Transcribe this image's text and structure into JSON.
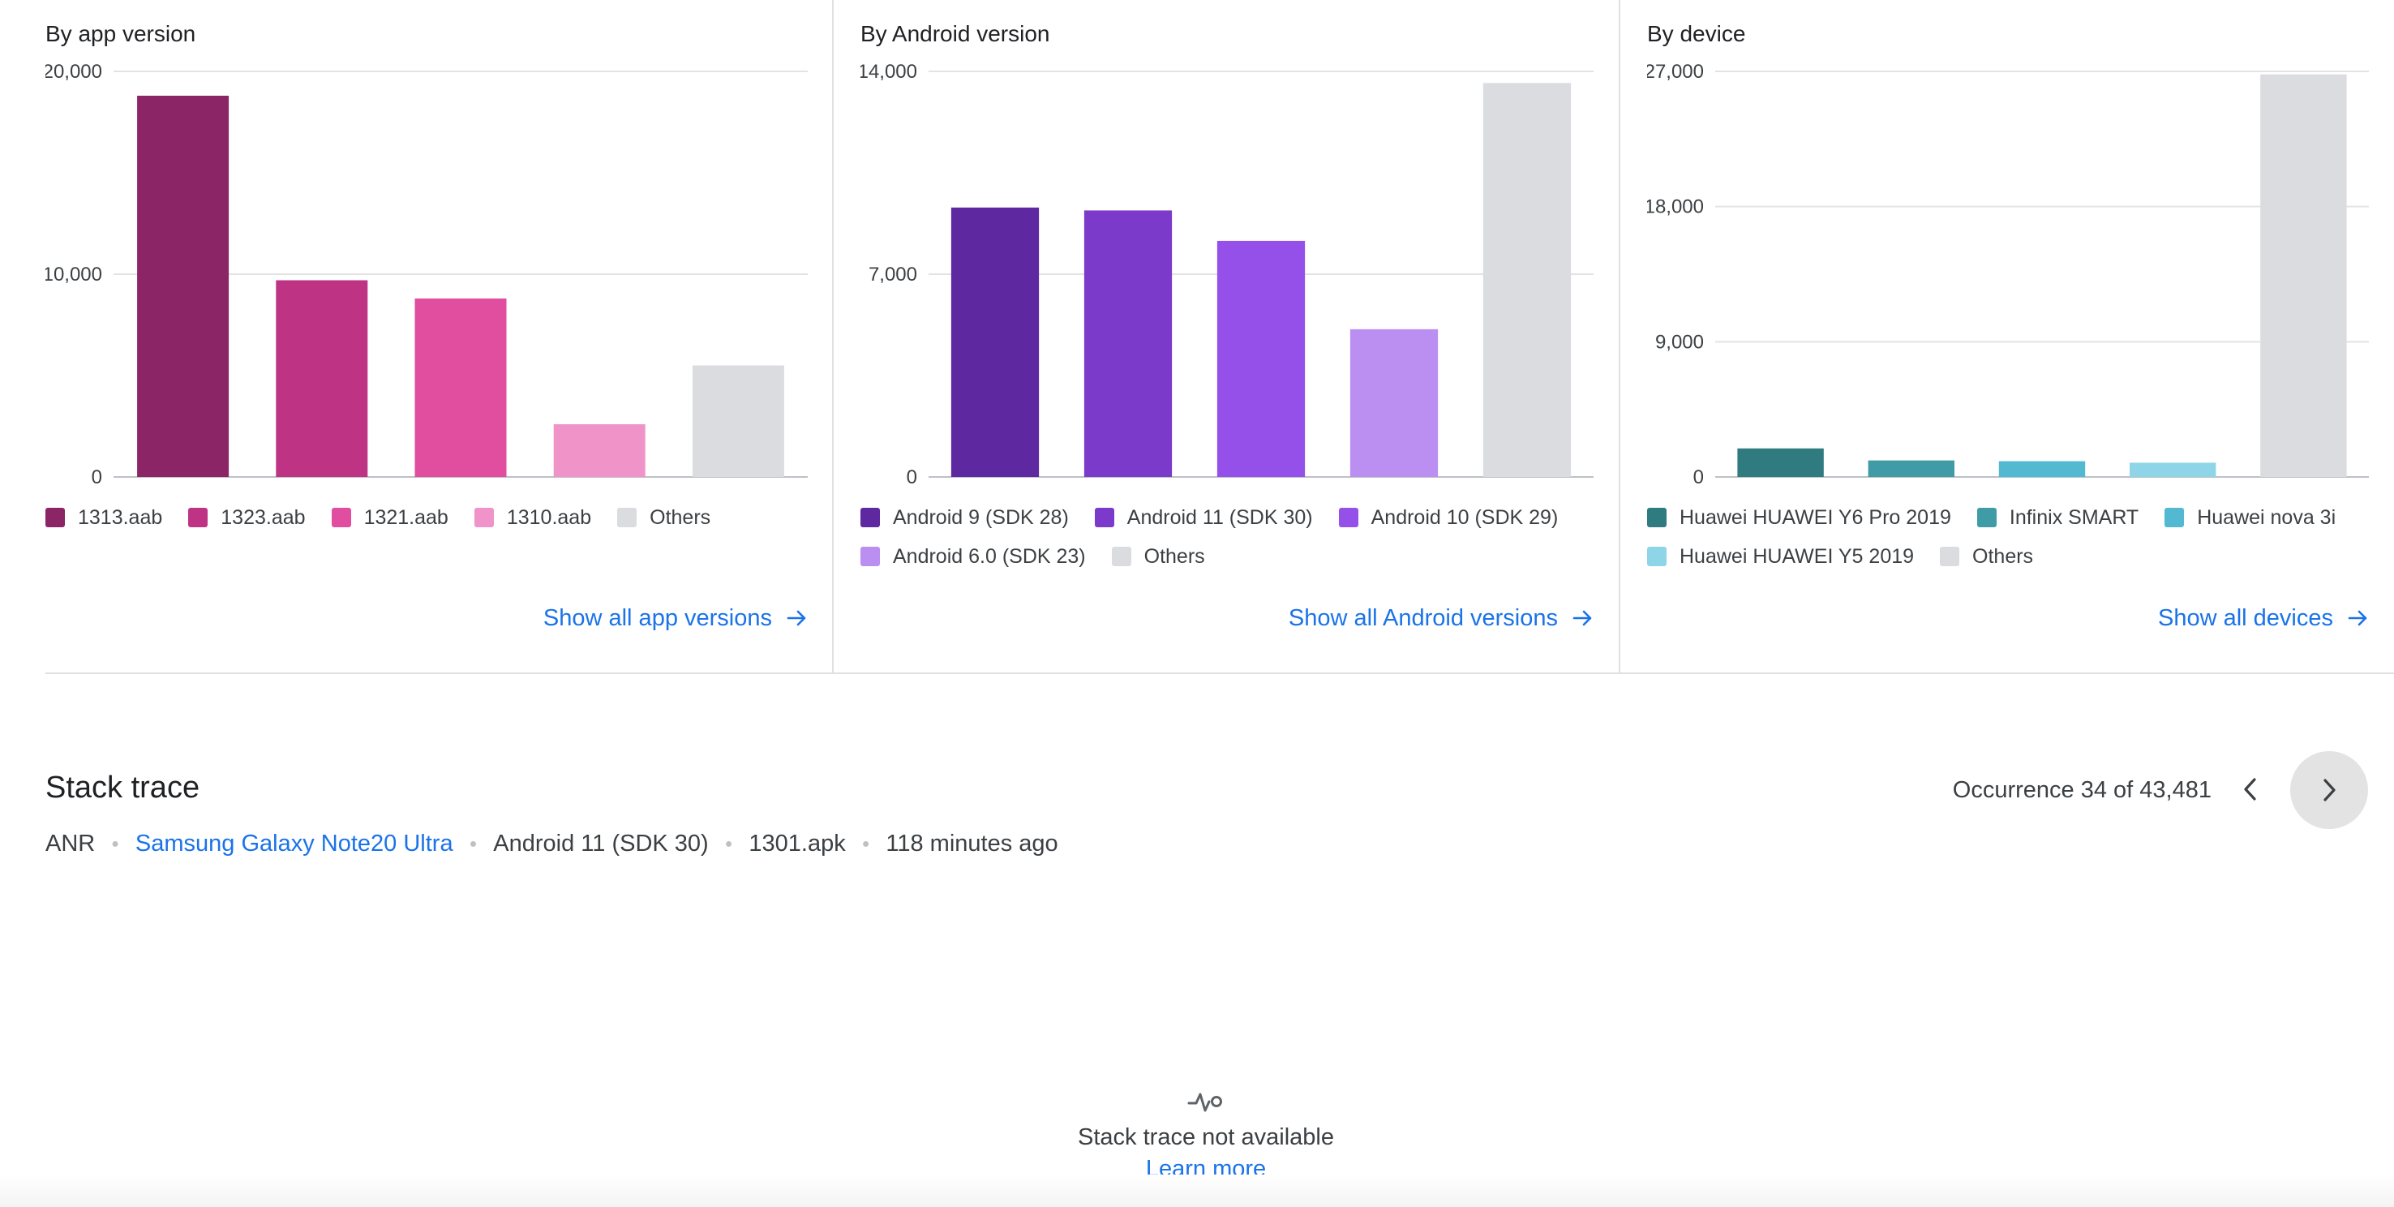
{
  "panels": [
    {
      "title": "By app version",
      "show_all_label": "Show all app versions",
      "legend": [
        {
          "label": "1313.aab",
          "color": "#8b2565"
        },
        {
          "label": "1323.aab",
          "color": "#be3384"
        },
        {
          "label": "1321.aab",
          "color": "#e14ea0"
        },
        {
          "label": "1310.aab",
          "color": "#ef93c9"
        },
        {
          "label": "Others",
          "color": "#dadce0"
        }
      ]
    },
    {
      "title": "By Android version",
      "show_all_label": "Show all Android versions",
      "legend": [
        {
          "label": "Android 9 (SDK 28)",
          "color": "#5e28a0"
        },
        {
          "label": "Android 11 (SDK 30)",
          "color": "#7b3ac9"
        },
        {
          "label": "Android 10 (SDK 29)",
          "color": "#9650ea"
        },
        {
          "label": "Android 6.0 (SDK 23)",
          "color": "#bb8ef2"
        },
        {
          "label": "Others",
          "color": "#dadce0"
        }
      ]
    },
    {
      "title": "By device",
      "show_all_label": "Show all devices",
      "legend": [
        {
          "label": "Huawei HUAWEI Y6 Pro 2019",
          "color": "#2f7b80"
        },
        {
          "label": "Infinix SMART",
          "color": "#3f9ba6"
        },
        {
          "label": "Huawei nova 3i",
          "color": "#52b9d0"
        },
        {
          "label": "Huawei HUAWEI Y5 2019",
          "color": "#8fd5e8"
        },
        {
          "label": "Others",
          "color": "#dadce0"
        }
      ]
    }
  ],
  "chart_data": [
    {
      "type": "bar",
      "title": "By app version",
      "categories": [
        "1313.aab",
        "1323.aab",
        "1321.aab",
        "1310.aab",
        "Others"
      ],
      "values": [
        18800,
        9700,
        8800,
        2600,
        5500
      ],
      "colors": [
        "#8b2565",
        "#be3384",
        "#e14ea0",
        "#ef93c9",
        "#dadce0"
      ],
      "yticks": [
        "0",
        "10,000",
        "20,000"
      ],
      "ylim": [
        0,
        20000
      ],
      "grid": true
    },
    {
      "type": "bar",
      "title": "By Android version",
      "categories": [
        "Android 9 (SDK 28)",
        "Android 11 (SDK 30)",
        "Android 10 (SDK 29)",
        "Android 6.0 (SDK 23)",
        "Others"
      ],
      "values": [
        9300,
        9200,
        8150,
        5100,
        13600
      ],
      "colors": [
        "#5e28a0",
        "#7b3ac9",
        "#9650ea",
        "#bb8ef2",
        "#dadce0"
      ],
      "yticks": [
        "0",
        "7,000",
        "14,000"
      ],
      "ylim": [
        0,
        14000
      ],
      "grid": true
    },
    {
      "type": "bar",
      "title": "By device",
      "categories": [
        "Huawei HUAWEI Y6 Pro 2019",
        "Infinix SMART",
        "Huawei nova 3i",
        "Huawei HUAWEI Y5 2019",
        "Others"
      ],
      "values": [
        1900,
        1100,
        1050,
        950,
        26800
      ],
      "colors": [
        "#2f7b80",
        "#3f9ba6",
        "#52b9d0",
        "#8fd5e8",
        "#dadce0"
      ],
      "yticks": [
        "0",
        "9,000",
        "18,000",
        "27,000"
      ],
      "ylim": [
        0,
        27000
      ],
      "grid": true
    }
  ],
  "stack_trace": {
    "title": "Stack trace",
    "type": "ANR",
    "device": "Samsung Galaxy Note20 Ultra",
    "os": "Android 11 (SDK 30)",
    "app_version": "1301.apk",
    "time": "118 minutes ago",
    "occurrence": "Occurrence 34 of 43,481",
    "empty_message": "Stack trace not available",
    "learn_more": "Learn more"
  }
}
